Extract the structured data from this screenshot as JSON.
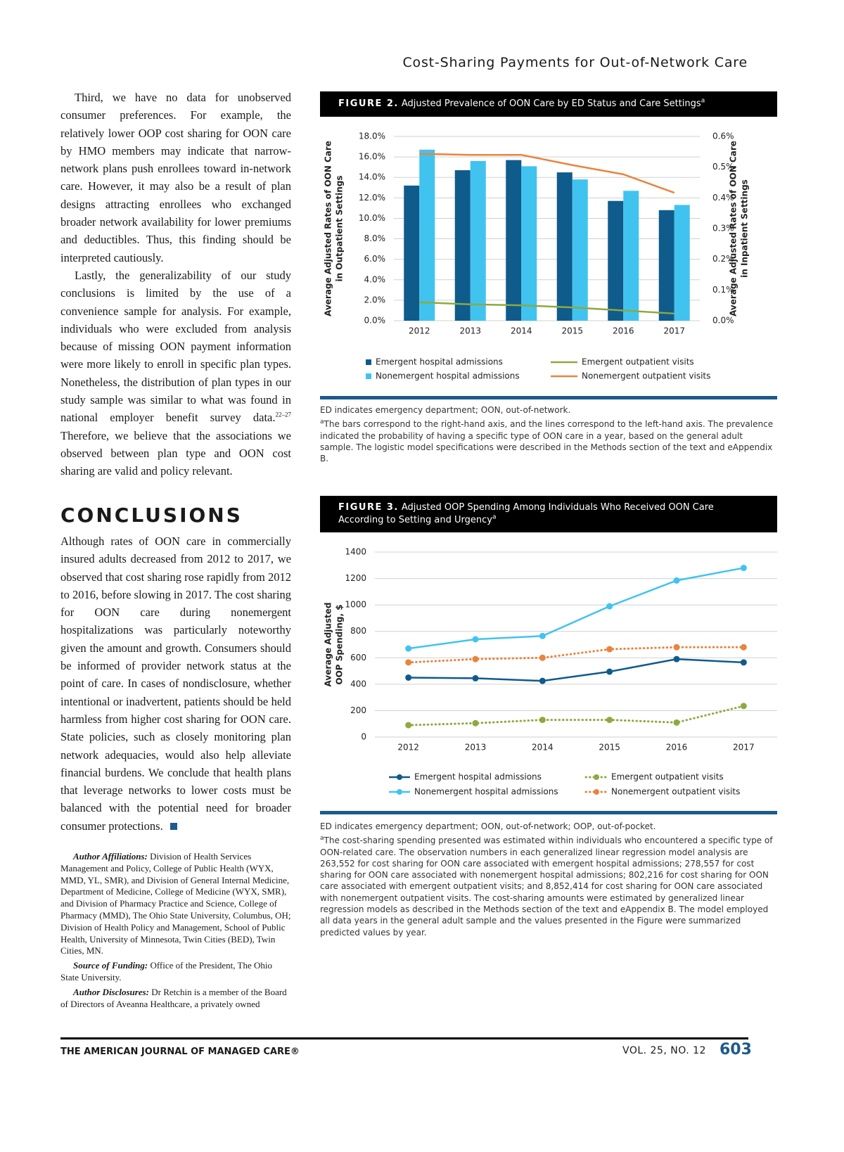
{
  "header": {
    "running_title": "Cost-Sharing Payments for Out-of-Network Care"
  },
  "body": {
    "paragraph_1": "Third, we have no data for unobserved consumer preferences. For example, the relatively lower OOP cost sharing for OON care by HMO members may indicate that narrow-network plans push enrollees toward in-network care. However, it may also be a result of plan designs attracting enrollees who exchanged broader network availability for lower premiums and deductibles. Thus, this finding should be interpreted cautiously.",
    "paragraph_2": {
      "text_before": "Lastly, the generalizability of our study conclusions is limited by the use of a convenience sample for analysis. For example, individuals who were excluded from analysis because of missing OON payment information were more likely to enroll in specific plan types. Nonetheless, the distribution of plan types in our study sample was similar to what was found in national employer benefit survey data.",
      "citation": "22–27",
      "text_after": " Therefore, we believe that the associations we observed between plan type and OON cost sharing are valid and policy relevant."
    },
    "conclusions_heading": "CONCLUSIONS",
    "conclusions": "Although rates of OON care in commercially insured adults decreased from 2012 to 2017, we observed that cost sharing rose rapidly from 2012 to 2016, before slowing in 2017. The cost sharing for OON care during nonemergent hospitalizations was particularly noteworthy given the amount and growth. Consumers should be informed of provider network status at the point of care. In cases of nondisclosure, whether intentional or inadvertent, patients should be held harmless from higher cost sharing for OON care. State policies, such as closely monitoring plan network adequacies, would also help alleviate financial burdens. We conclude that health plans that leverage networks to lower costs must be balanced with the potential need for broader consumer protections.",
    "affiliations": {
      "label": "Author Affiliations:",
      "text": " Division of Health Services Management and Policy, College of Public Health (WYX, MMD, YL, SMR), and Division of General Internal Medicine, Department of Medicine, College of Medicine (WYX, SMR), and Division of Pharmacy Practice and Science, College of Pharmacy (MMD), The Ohio State University, Columbus, OH; Division of Health Policy and Management, School of Public Health, University of Minnesota, Twin Cities (BED), Twin Cities, MN."
    },
    "funding": {
      "label": "Source of Funding:",
      "text": " Office of the President, The Ohio State University."
    },
    "disclosures": {
      "label": "Author Disclosures:",
      "text": " Dr Retchin is a member of the Board of Directors of Aveanna Healthcare, a privately owned"
    }
  },
  "chart_data": [
    {
      "type": "bar",
      "label": "FIGURE 2.",
      "title": "Adjusted Prevalence of OON Care by ED Status and Care Settings",
      "title_marker": "a",
      "ylabel": [
        "Average Adjusted Rates of OON Care",
        "in Outpatient Settings"
      ],
      "y2label": [
        "Average Adjusted Rates of OON Care",
        "in Inpatient Settings"
      ],
      "categories": [
        "2012",
        "2013",
        "2014",
        "2015",
        "2016",
        "2017"
      ],
      "ylim": [
        0,
        18
      ],
      "yticks": [
        {
          "value": 0,
          "label": "0.0%"
        },
        {
          "value": 2,
          "label": "2.0%"
        },
        {
          "value": 4,
          "label": "4.0%"
        },
        {
          "value": 6,
          "label": "6.0%"
        },
        {
          "value": 8,
          "label": "8.0%"
        },
        {
          "value": 10,
          "label": "10.0%"
        },
        {
          "value": 12,
          "label": "12.0%"
        },
        {
          "value": 14,
          "label": "14.0%"
        },
        {
          "value": 16,
          "label": "16.0%"
        },
        {
          "value": 18,
          "label": "18.0%"
        }
      ],
      "y2lim": [
        0,
        0.6
      ],
      "y2ticks": [
        {
          "value": 0,
          "label": "0.0%"
        },
        {
          "value": 0.1,
          "label": "0.1%"
        },
        {
          "value": 0.2,
          "label": "0.2%"
        },
        {
          "value": 0.3,
          "label": "0.3%"
        },
        {
          "value": 0.4,
          "label": "0.4%"
        },
        {
          "value": 0.5,
          "label": "0.5%"
        },
        {
          "value": 0.6,
          "label": "0.6%"
        }
      ],
      "grid": true,
      "series": [
        {
          "name": "Emergent hospital admissions",
          "type": "bar",
          "axis": "y2",
          "color": "#0f5b8c",
          "values": [
            0.44,
            0.49,
            0.523,
            0.483,
            0.39,
            0.36
          ]
        },
        {
          "name": "Nonemergent hospital admissions",
          "type": "bar",
          "axis": "y2",
          "color": "#41c3f0",
          "values": [
            0.557,
            0.52,
            0.503,
            0.46,
            0.423,
            0.377
          ]
        },
        {
          "name": "Emergent outpatient visits",
          "type": "line",
          "color": "#8caa3e",
          "values": [
            1.8,
            1.6,
            1.5,
            1.3,
            1.0,
            0.7
          ]
        },
        {
          "name": "Nonemergent outpatient visits",
          "type": "line",
          "color": "#e9843e",
          "values": [
            16.3,
            16.2,
            16.2,
            15.2,
            14.3,
            12.5
          ]
        }
      ],
      "footnotes": {
        "abbreviations": "ED indicates emergency department; OON, out-of-network.",
        "marker": "a",
        "text": "The bars correspond to the right-hand axis, and the lines correspond to the left-hand axis. The prevalence indicated the probability of having a specific type of OON care in a year, based on the general adult sample. The logistic model specifications were described in the Methods section of the text and eAppendix B."
      }
    },
    {
      "type": "line",
      "label": "FIGURE 3.",
      "title": "Adjusted OOP Spending Among Individuals Who Received OON Care According to Setting and Urgency",
      "title_marker": "a",
      "ylabel": [
        "Average Adjusted",
        "OOP Spending, $"
      ],
      "categories": [
        "2012",
        "2013",
        "2014",
        "2015",
        "2016",
        "2017"
      ],
      "ylim": [
        0,
        1400
      ],
      "yticks": [
        0,
        200,
        400,
        600,
        800,
        1000,
        1200,
        1400
      ],
      "grid": true,
      "markers": true,
      "series": [
        {
          "name": "Emergent hospital admissions",
          "type": "line",
          "color": "#0f5b8c",
          "values": [
            450,
            445,
            425,
            495,
            590,
            565
          ]
        },
        {
          "name": "Nonemergent hospital admissions",
          "type": "line",
          "color": "#41c3f0",
          "values": [
            670,
            740,
            765,
            990,
            1185,
            1280
          ]
        },
        {
          "name": "Emergent outpatient visits",
          "type": "line",
          "line_style": "dotted",
          "color": "#8caa3e",
          "values": [
            90,
            105,
            130,
            130,
            110,
            235
          ]
        },
        {
          "name": "Nonemergent outpatient visits",
          "type": "line",
          "line_style": "dotted",
          "color": "#e9843e",
          "values": [
            565,
            590,
            600,
            665,
            680,
            680
          ]
        }
      ],
      "footnotes": {
        "abbreviations": "ED indicates emergency department; OON, out-of-network; OOP, out-of-pocket.",
        "marker": "a",
        "text": "The cost-sharing spending presented was estimated within individuals who encountered a specific type of OON-related care. The observation numbers in each generalized linear regression model analysis are 263,552 for cost sharing for OON care associated with emergent hospital admissions; 278,557 for cost sharing for OON care associated with nonemergent hospital admissions; 802,216 for cost sharing for OON care associated with emergent outpatient visits; and 8,852,414 for cost sharing for OON care associated with nonemergent outpatient visits. The cost-sharing amounts were estimated by generalized linear regression models as described in the Methods section of the text and eAppendix B. The model employed all data years in the general adult sample and the values presented in the Figure were summarized predicted values by year."
      }
    }
  ],
  "footer": {
    "journal": "THE AMERICAN JOURNAL OF MANAGED CARE®",
    "issue": "VOL. 25, NO. 12",
    "page": "603"
  }
}
